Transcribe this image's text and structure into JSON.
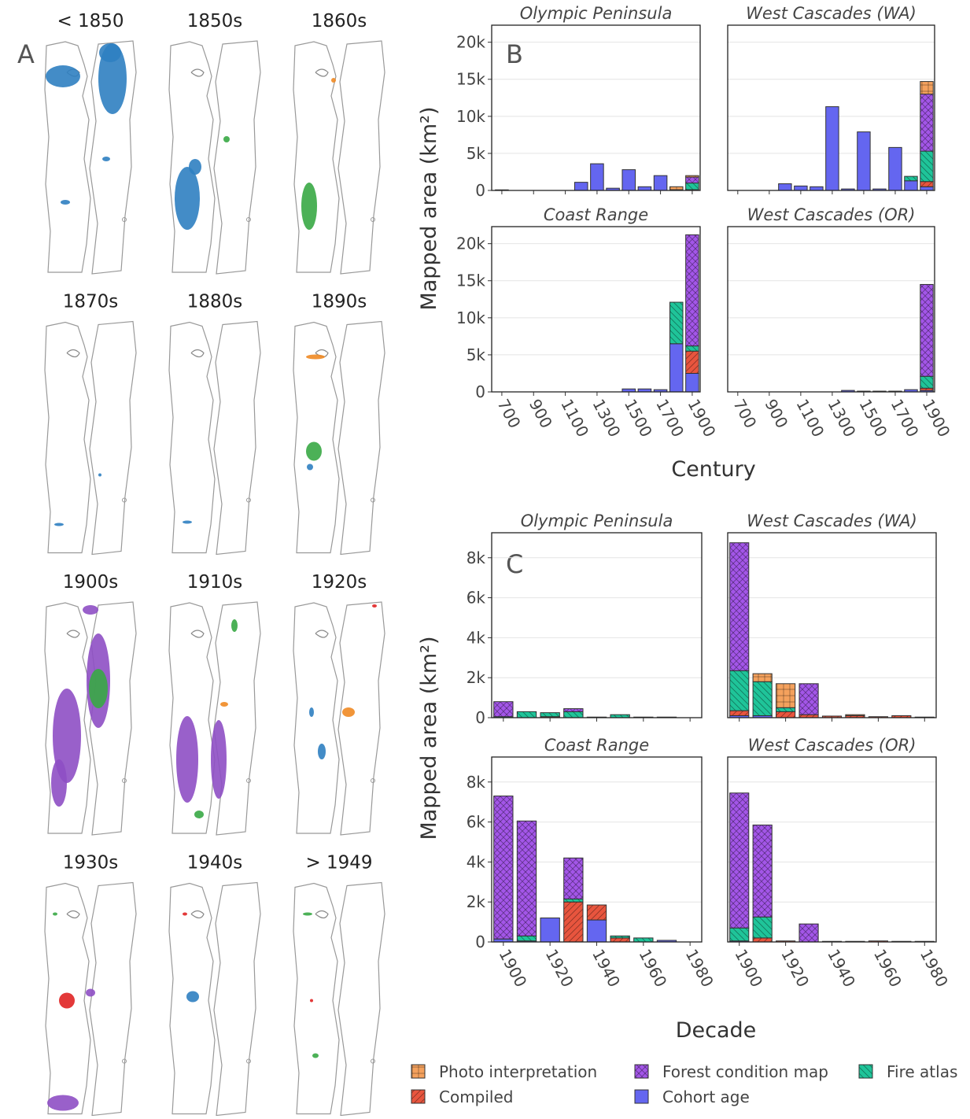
{
  "panel_labels": {
    "a": "A",
    "b": "B",
    "c": "C"
  },
  "maps": {
    "titles": [
      "< 1850",
      "1850s",
      "1860s",
      "1870s",
      "1880s",
      "1890s",
      "1900s",
      "1910s",
      "1920s",
      "1930s",
      "1940s",
      "> 1949"
    ]
  },
  "axis_labels": {
    "y_b": "Mapped area (km²)",
    "x_b": "Century",
    "y_c": "Mapped area (km²)",
    "x_c": "Decade"
  },
  "legend": [
    {
      "name": "Cohort age",
      "color": "#6466f0",
      "hatch": "none"
    },
    {
      "name": "Compiled",
      "color": "#e8553e",
      "hatch": "slash"
    },
    {
      "name": "Fire atlas",
      "color": "#1fc499",
      "hatch": "backslash"
    },
    {
      "name": "Forest condition map",
      "color": "#a356e8",
      "hatch": "cross"
    },
    {
      "name": "Photo interpretation",
      "color": "#f4a15d",
      "hatch": "grid"
    }
  ],
  "chart_data": [
    {
      "type": "bar",
      "stacked": true,
      "title": "Olympic Peninsula",
      "grid": true,
      "x": [
        700,
        800,
        900,
        1000,
        1100,
        1200,
        1300,
        1400,
        1500,
        1600,
        1700,
        1800,
        1900
      ],
      "xlim": [
        636,
        1950
      ],
      "xticks": [
        700,
        900,
        1100,
        1300,
        1500,
        1700,
        1900
      ],
      "ylim": [
        0,
        22300
      ],
      "yticks": [
        0,
        {
          "value": 5000,
          "label": "5k"
        },
        {
          "value": 10000,
          "label": "10k"
        },
        {
          "value": 15000,
          "label": "15k"
        },
        {
          "value": 20000,
          "label": "20k"
        }
      ],
      "series": [
        {
          "values": [
            80,
            0,
            0,
            0,
            0,
            1100,
            3600,
            300,
            2800,
            500,
            2000,
            100,
            100
          ]
        },
        {
          "values": [
            0,
            0,
            0,
            0,
            0,
            0,
            0,
            0,
            0,
            0,
            0,
            0,
            0
          ]
        },
        {
          "values": [
            0,
            0,
            0,
            0,
            0,
            0,
            0,
            0,
            0,
            0,
            0,
            0,
            900
          ]
        },
        {
          "values": [
            0,
            0,
            0,
            0,
            0,
            0,
            0,
            0,
            0,
            0,
            0,
            0,
            800
          ]
        },
        {
          "values": [
            0,
            0,
            0,
            0,
            0,
            0,
            0,
            0,
            0,
            0,
            0,
            400,
            200
          ]
        }
      ]
    },
    {
      "type": "bar",
      "stacked": true,
      "title": "West Cascades (WA)",
      "grid": true,
      "x": [
        700,
        800,
        900,
        1000,
        1100,
        1200,
        1300,
        1400,
        1500,
        1600,
        1700,
        1800,
        1900
      ],
      "xlim": [
        636,
        1950
      ],
      "xticks": [
        700,
        900,
        1100,
        1300,
        1500,
        1700,
        1900
      ],
      "ylim": [
        0,
        22300
      ],
      "yticks": [
        0,
        {
          "value": 5000,
          "label": "5k"
        },
        {
          "value": 10000,
          "label": "10k"
        },
        {
          "value": 15000,
          "label": "15k"
        },
        {
          "value": 20000,
          "label": "20k"
        }
      ],
      "series": [
        {
          "values": [
            0,
            0,
            0,
            900,
            600,
            500,
            11300,
            200,
            7900,
            200,
            5800,
            1300,
            500
          ]
        },
        {
          "values": [
            0,
            0,
            0,
            0,
            0,
            0,
            0,
            0,
            0,
            0,
            0,
            0,
            700
          ]
        },
        {
          "values": [
            0,
            0,
            0,
            0,
            0,
            0,
            0,
            0,
            0,
            0,
            0,
            600,
            4100
          ]
        },
        {
          "values": [
            0,
            0,
            0,
            0,
            0,
            0,
            0,
            0,
            0,
            0,
            0,
            0,
            7700
          ]
        },
        {
          "values": [
            0,
            0,
            0,
            0,
            0,
            0,
            0,
            0,
            0,
            0,
            0,
            0,
            1700
          ]
        }
      ]
    },
    {
      "type": "bar",
      "stacked": true,
      "title": "Coast Range",
      "grid": true,
      "x": [
        700,
        800,
        900,
        1000,
        1100,
        1200,
        1300,
        1400,
        1500,
        1600,
        1700,
        1800,
        1900
      ],
      "xlim": [
        636,
        1950
      ],
      "xticks": [
        700,
        900,
        1100,
        1300,
        1500,
        1700,
        1900
      ],
      "ylim": [
        0,
        22300
      ],
      "yticks": [
        0,
        {
          "value": 5000,
          "label": "5k"
        },
        {
          "value": 10000,
          "label": "10k"
        },
        {
          "value": 15000,
          "label": "15k"
        },
        {
          "value": 20000,
          "label": "20k"
        }
      ],
      "series": [
        {
          "values": [
            0,
            0,
            0,
            0,
            0,
            0,
            0,
            0,
            400,
            400,
            300,
            6500,
            2500
          ]
        },
        {
          "values": [
            0,
            0,
            0,
            0,
            0,
            0,
            0,
            0,
            0,
            0,
            0,
            0,
            3000
          ]
        },
        {
          "values": [
            0,
            0,
            0,
            0,
            0,
            0,
            0,
            0,
            0,
            0,
            0,
            5600,
            700
          ]
        },
        {
          "values": [
            0,
            0,
            0,
            0,
            0,
            0,
            0,
            0,
            0,
            0,
            0,
            0,
            15000
          ]
        },
        {
          "values": [
            0,
            0,
            0,
            0,
            0,
            0,
            0,
            0,
            0,
            0,
            0,
            0,
            0
          ]
        }
      ]
    },
    {
      "type": "bar",
      "stacked": true,
      "title": "West Cascades (OR)",
      "grid": true,
      "x": [
        700,
        800,
        900,
        1000,
        1100,
        1200,
        1300,
        1400,
        1500,
        1600,
        1700,
        1800,
        1900
      ],
      "xlim": [
        636,
        1950
      ],
      "xticks": [
        700,
        900,
        1100,
        1300,
        1500,
        1700,
        1900
      ],
      "ylim": [
        0,
        22300
      ],
      "yticks": [
        0,
        {
          "value": 5000,
          "label": "5k"
        },
        {
          "value": 10000,
          "label": "10k"
        },
        {
          "value": 15000,
          "label": "15k"
        },
        {
          "value": 20000,
          "label": "20k"
        }
      ],
      "series": [
        {
          "values": [
            0,
            0,
            0,
            0,
            0,
            0,
            0,
            200,
            100,
            100,
            100,
            300,
            200
          ]
        },
        {
          "values": [
            0,
            0,
            0,
            0,
            0,
            0,
            0,
            0,
            0,
            0,
            0,
            0,
            300
          ]
        },
        {
          "values": [
            0,
            0,
            0,
            0,
            0,
            0,
            0,
            0,
            0,
            0,
            0,
            0,
            1600
          ]
        },
        {
          "values": [
            0,
            0,
            0,
            0,
            0,
            0,
            0,
            0,
            0,
            0,
            0,
            0,
            12400
          ]
        },
        {
          "values": [
            0,
            0,
            0,
            0,
            0,
            0,
            0,
            0,
            0,
            0,
            0,
            0,
            0
          ]
        }
      ]
    },
    {
      "type": "bar",
      "stacked": true,
      "title": "Olympic Peninsula",
      "grid": true,
      "x": [
        1900,
        1910,
        1920,
        1930,
        1940,
        1950,
        1960,
        1970,
        1980
      ],
      "xlim": [
        1895,
        1985
      ],
      "xticks": [
        1900,
        1920,
        1940,
        1960,
        1980
      ],
      "ylim": [
        0,
        9250
      ],
      "yticks": [
        0,
        {
          "value": 2000,
          "label": "2k"
        },
        {
          "value": 4000,
          "label": "4k"
        },
        {
          "value": 6000,
          "label": "6k"
        },
        {
          "value": 8000,
          "label": "8k"
        }
      ],
      "series": [
        {
          "values": [
            0,
            0,
            0,
            0,
            0,
            0,
            0,
            0,
            0
          ]
        },
        {
          "values": [
            0,
            0,
            50,
            0,
            30,
            0,
            30,
            30,
            0
          ]
        },
        {
          "values": [
            50,
            300,
            200,
            300,
            0,
            150,
            0,
            0,
            0
          ]
        },
        {
          "values": [
            750,
            0,
            0,
            150,
            0,
            0,
            0,
            0,
            0
          ]
        },
        {
          "values": [
            0,
            0,
            0,
            0,
            0,
            0,
            0,
            0,
            0
          ]
        }
      ]
    },
    {
      "type": "bar",
      "stacked": true,
      "title": "West Cascades (WA)",
      "grid": true,
      "x": [
        1900,
        1910,
        1920,
        1930,
        1940,
        1950,
        1960,
        1970,
        1980
      ],
      "xlim": [
        1895,
        1985
      ],
      "xticks": [
        1900,
        1920,
        1940,
        1960,
        1980
      ],
      "ylim": [
        0,
        9250
      ],
      "yticks": [
        0,
        {
          "value": 2000,
          "label": "2k"
        },
        {
          "value": 4000,
          "label": "4k"
        },
        {
          "value": 6000,
          "label": "6k"
        },
        {
          "value": 8000,
          "label": "8k"
        }
      ],
      "series": [
        {
          "values": [
            100,
            100,
            0,
            0,
            0,
            0,
            0,
            0,
            0
          ]
        },
        {
          "values": [
            250,
            0,
            300,
            150,
            80,
            100,
            50,
            100,
            30
          ]
        },
        {
          "values": [
            2000,
            1700,
            200,
            0,
            0,
            0,
            0,
            0,
            0
          ]
        },
        {
          "values": [
            6400,
            0,
            0,
            1550,
            0,
            0,
            0,
            0,
            0
          ]
        },
        {
          "values": [
            0,
            400,
            1200,
            0,
            0,
            50,
            0,
            0,
            0
          ]
        }
      ]
    },
    {
      "type": "bar",
      "stacked": true,
      "title": "Coast Range",
      "grid": true,
      "x": [
        1900,
        1910,
        1920,
        1930,
        1940,
        1950,
        1960,
        1970,
        1980
      ],
      "xlim": [
        1895,
        1985
      ],
      "xticks": [
        1900,
        1920,
        1940,
        1960,
        1980
      ],
      "ylim": [
        0,
        9250
      ],
      "yticks": [
        0,
        {
          "value": 2000,
          "label": "2k"
        },
        {
          "value": 4000,
          "label": "4k"
        },
        {
          "value": 6000,
          "label": "6k"
        },
        {
          "value": 8000,
          "label": "8k"
        }
      ],
      "series": [
        {
          "values": [
            150,
            50,
            1200,
            0,
            1100,
            0,
            0,
            80,
            0
          ]
        },
        {
          "values": [
            0,
            0,
            0,
            2000,
            750,
            200,
            0,
            0,
            0
          ]
        },
        {
          "values": [
            0,
            250,
            0,
            150,
            0,
            100,
            200,
            0,
            0
          ]
        },
        {
          "values": [
            7150,
            5750,
            0,
            2050,
            0,
            0,
            0,
            0,
            0
          ]
        },
        {
          "values": [
            0,
            0,
            0,
            0,
            0,
            0,
            0,
            0,
            0
          ]
        }
      ]
    },
    {
      "type": "bar",
      "stacked": true,
      "title": "West Cascades (OR)",
      "grid": true,
      "x": [
        1900,
        1910,
        1920,
        1930,
        1940,
        1950,
        1960,
        1970,
        1980
      ],
      "xlim": [
        1895,
        1985
      ],
      "xticks": [
        1900,
        1920,
        1940,
        1960,
        1980
      ],
      "ylim": [
        0,
        9250
      ],
      "yticks": [
        0,
        {
          "value": 2000,
          "label": "2k"
        },
        {
          "value": 4000,
          "label": "4k"
        },
        {
          "value": 6000,
          "label": "6k"
        },
        {
          "value": 8000,
          "label": "8k"
        }
      ],
      "series": [
        {
          "values": [
            50,
            0,
            0,
            0,
            30,
            30,
            0,
            30,
            30
          ]
        },
        {
          "values": [
            0,
            200,
            50,
            0,
            0,
            0,
            50,
            0,
            0
          ]
        },
        {
          "values": [
            650,
            1050,
            0,
            0,
            0,
            0,
            0,
            0,
            0
          ]
        },
        {
          "values": [
            6750,
            4600,
            0,
            900,
            0,
            0,
            0,
            0,
            0
          ]
        },
        {
          "values": [
            0,
            0,
            0,
            0,
            0,
            0,
            0,
            0,
            0
          ]
        }
      ]
    }
  ]
}
